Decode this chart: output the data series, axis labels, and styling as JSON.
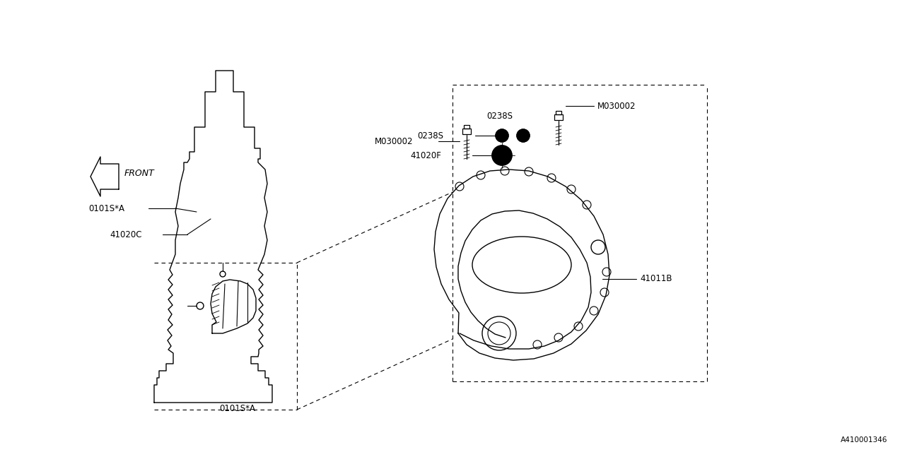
{
  "bg_color": "#ffffff",
  "line_color": "#000000",
  "diagram_id": "A410001346",
  "lw": 1.0,
  "labels": {
    "front_arrow": "FRONT",
    "part_41020C": "41020C",
    "part_0101SA_left": "0101S*A",
    "part_0101SA_bottom": "0101S*A",
    "part_41011B": "41011B",
    "part_M030002_top": "M030002",
    "part_41020F": "41020F",
    "part_0238S_upper": "0238S",
    "part_0238S_lower": "0238S",
    "part_M030002_right": "M030002"
  },
  "font_size": 8.5
}
